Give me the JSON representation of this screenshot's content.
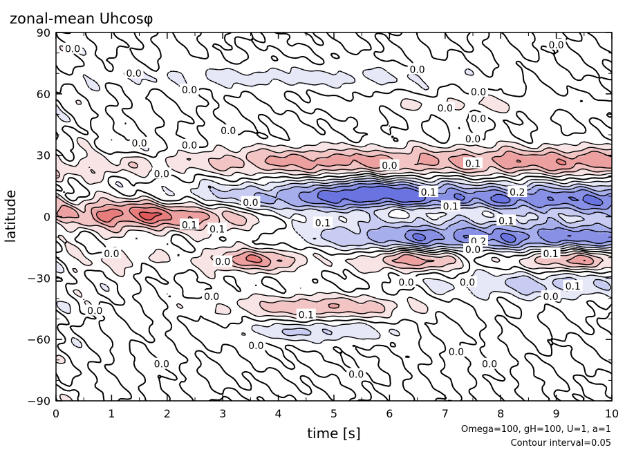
{
  "chart_data": {
    "type": "heatmap",
    "title": "zonal-mean Uhcosφ",
    "xlabel": "time [s]",
    "ylabel": "latitude",
    "xlim": [
      0,
      10
    ],
    "ylim": [
      -90,
      90
    ],
    "x_ticks": [
      0,
      1,
      2,
      3,
      4,
      5,
      6,
      7,
      8,
      9,
      10
    ],
    "y_ticks": [
      90,
      60,
      30,
      0,
      -30,
      -60,
      -90
    ],
    "y_tick_labels": [
      "90",
      "60",
      "30",
      "0",
      "−30",
      "−60",
      "−90"
    ],
    "grid": false,
    "contour_interval": 0.05,
    "contour_labels": [
      {
        "text": "0.0",
        "x": 0.3,
        "y": 82
      },
      {
        "text": "0.0",
        "x": 1.4,
        "y": 70
      },
      {
        "text": "0.0",
        "x": 2.4,
        "y": 62
      },
      {
        "text": "0.0",
        "x": 3.1,
        "y": 42
      },
      {
        "text": "0.0",
        "x": 1.5,
        "y": 36
      },
      {
        "text": "0.0",
        "x": 2.4,
        "y": 35
      },
      {
        "text": "0.0",
        "x": 1.9,
        "y": 21
      },
      {
        "text": "0.0",
        "x": 9.0,
        "y": 84
      },
      {
        "text": "0.0",
        "x": 6.5,
        "y": 72
      },
      {
        "text": "0.0",
        "x": 7.6,
        "y": 61
      },
      {
        "text": "0.0",
        "x": 7.0,
        "y": 53
      },
      {
        "text": "0.0",
        "x": 7.6,
        "y": 48
      },
      {
        "text": "0.0",
        "x": 7.5,
        "y": 38
      },
      {
        "text": "0.1",
        "x": 7.5,
        "y": 26
      },
      {
        "text": "0.0",
        "x": 6.0,
        "y": 25
      },
      {
        "text": "0.1",
        "x": 6.7,
        "y": 12
      },
      {
        "text": "0.2",
        "x": 8.3,
        "y": 12
      },
      {
        "text": "0.1",
        "x": 7.1,
        "y": 5
      },
      {
        "text": "0.0",
        "x": 3.5,
        "y": 7
      },
      {
        "text": "0.1",
        "x": 2.4,
        "y": -4
      },
      {
        "text": "0.1",
        "x": 2.9,
        "y": -6
      },
      {
        "text": "0.1",
        "x": 4.8,
        "y": -3
      },
      {
        "text": "0.1",
        "x": 8.1,
        "y": -2
      },
      {
        "text": "0.2",
        "x": 7.6,
        "y": -12
      },
      {
        "text": "0.0",
        "x": 7.5,
        "y": -16
      },
      {
        "text": "0.1",
        "x": 8.9,
        "y": -18
      },
      {
        "text": "0.0",
        "x": 3.0,
        "y": -22
      },
      {
        "text": "0.0",
        "x": 1.0,
        "y": -18
      },
      {
        "text": "0.0",
        "x": 6.3,
        "y": -32
      },
      {
        "text": "0.0",
        "x": 7.4,
        "y": -32
      },
      {
        "text": "0.1",
        "x": 9.3,
        "y": -34
      },
      {
        "text": "0.0",
        "x": 8.9,
        "y": -39
      },
      {
        "text": "0.0",
        "x": 2.8,
        "y": -39
      },
      {
        "text": "0.0",
        "x": 0.7,
        "y": -46
      },
      {
        "text": "0.1",
        "x": 4.5,
        "y": -48
      },
      {
        "text": "0.0",
        "x": 3.6,
        "y": -63
      },
      {
        "text": "0.0",
        "x": 7.2,
        "y": -66
      },
      {
        "text": "0.0",
        "x": 1.9,
        "y": -72
      },
      {
        "text": "0.0",
        "x": 7.8,
        "y": -72
      },
      {
        "text": "0.0",
        "x": 5.4,
        "y": -77
      }
    ],
    "notes": [
      "Omega=100, gH=100, U=1, a=1",
      "Contour interval=0.05"
    ]
  }
}
